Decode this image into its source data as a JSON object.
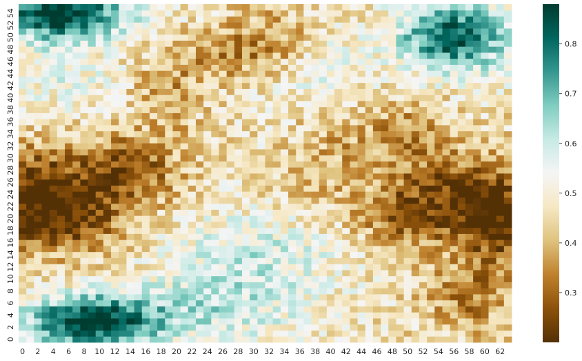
{
  "chart_data": {
    "type": "heatmap",
    "title": "",
    "xlabel": "",
    "ylabel": "",
    "rows": 56,
    "cols": 64,
    "x_ticks": [
      "0",
      "2",
      "4",
      "6",
      "8",
      "10",
      "12",
      "14",
      "16",
      "18",
      "20",
      "22",
      "24",
      "26",
      "28",
      "30",
      "32",
      "34",
      "36",
      "38",
      "40",
      "42",
      "44",
      "46",
      "48",
      "50",
      "52",
      "54",
      "56",
      "58",
      "60",
      "62"
    ],
    "y_ticks": [
      "0",
      "2",
      "4",
      "6",
      "8",
      "10",
      "12",
      "14",
      "16",
      "18",
      "20",
      "22",
      "24",
      "26",
      "28",
      "30",
      "32",
      "34",
      "36",
      "38",
      "40",
      "42",
      "44",
      "46",
      "48",
      "50",
      "52",
      "54"
    ],
    "y_order": "bottom-to-top",
    "colormap": "BrBG",
    "colormap_stops": [
      "#543005",
      "#8c510a",
      "#bf812d",
      "#dfc27d",
      "#f6e8c3",
      "#f5f5f5",
      "#c7eae5",
      "#80cdc1",
      "#35978f",
      "#01665e",
      "#003c30"
    ],
    "vmin": 0.2,
    "vmax": 0.88,
    "colorbar_ticks": [
      "0.3",
      "0.4",
      "0.5",
      "0.6",
      "0.7",
      "0.8"
    ],
    "colorbar_tick_values": [
      0.3,
      0.4,
      0.5,
      0.6,
      0.7,
      0.8
    ],
    "regions": [
      {
        "x": 9,
        "y": 3,
        "sx": 6,
        "sy": 3,
        "w": 0.42
      },
      {
        "x": 5,
        "y": 54,
        "sx": 6,
        "sy": 3,
        "w": 0.42
      },
      {
        "x": 56,
        "y": 50,
        "sx": 5,
        "sy": 4,
        "w": 0.36
      },
      {
        "x": 25,
        "y": 5,
        "sx": 8,
        "sy": 4,
        "w": 0.12
      },
      {
        "x": 30,
        "y": 14,
        "sx": 8,
        "sy": 5,
        "w": 0.12
      },
      {
        "x": 38,
        "y": 45,
        "sx": 5,
        "sy": 4,
        "w": 0.08
      },
      {
        "x": 5,
        "y": 44,
        "sx": 5,
        "sy": 4,
        "w": 0.08
      },
      {
        "x": 4,
        "y": 20,
        "sx": 6,
        "sy": 4,
        "w": -0.27
      },
      {
        "x": 13,
        "y": 28,
        "sx": 5,
        "sy": 4,
        "w": -0.22
      },
      {
        "x": 1,
        "y": 27,
        "sx": 4,
        "sy": 4,
        "w": -0.18
      },
      {
        "x": 57,
        "y": 24,
        "sx": 6,
        "sy": 5,
        "w": -0.2
      },
      {
        "x": 62,
        "y": 19,
        "sx": 4,
        "sy": 5,
        "w": -0.2
      },
      {
        "x": 49,
        "y": 20,
        "sx": 4,
        "sy": 4,
        "w": -0.14
      },
      {
        "x": 58,
        "y": 7,
        "sx": 4,
        "sy": 4,
        "w": -0.14
      },
      {
        "x": 50,
        "y": 34,
        "sx": 4,
        "sy": 4,
        "w": -0.12
      },
      {
        "x": 26,
        "y": 47,
        "sx": 6,
        "sy": 3,
        "w": -0.1
      },
      {
        "x": 32,
        "y": 50,
        "sx": 4,
        "sy": 4,
        "w": -0.1
      },
      {
        "x": 19,
        "y": 40,
        "sx": 3,
        "sy": 4,
        "w": -0.1
      },
      {
        "x": 41,
        "y": 33,
        "sx": 4,
        "sy": 4,
        "w": -0.06
      },
      {
        "x": 38,
        "y": 25,
        "sx": 4,
        "sy": 4,
        "w": -0.06
      }
    ],
    "base_value": 0.47,
    "noise_amplitude": 0.09
  }
}
